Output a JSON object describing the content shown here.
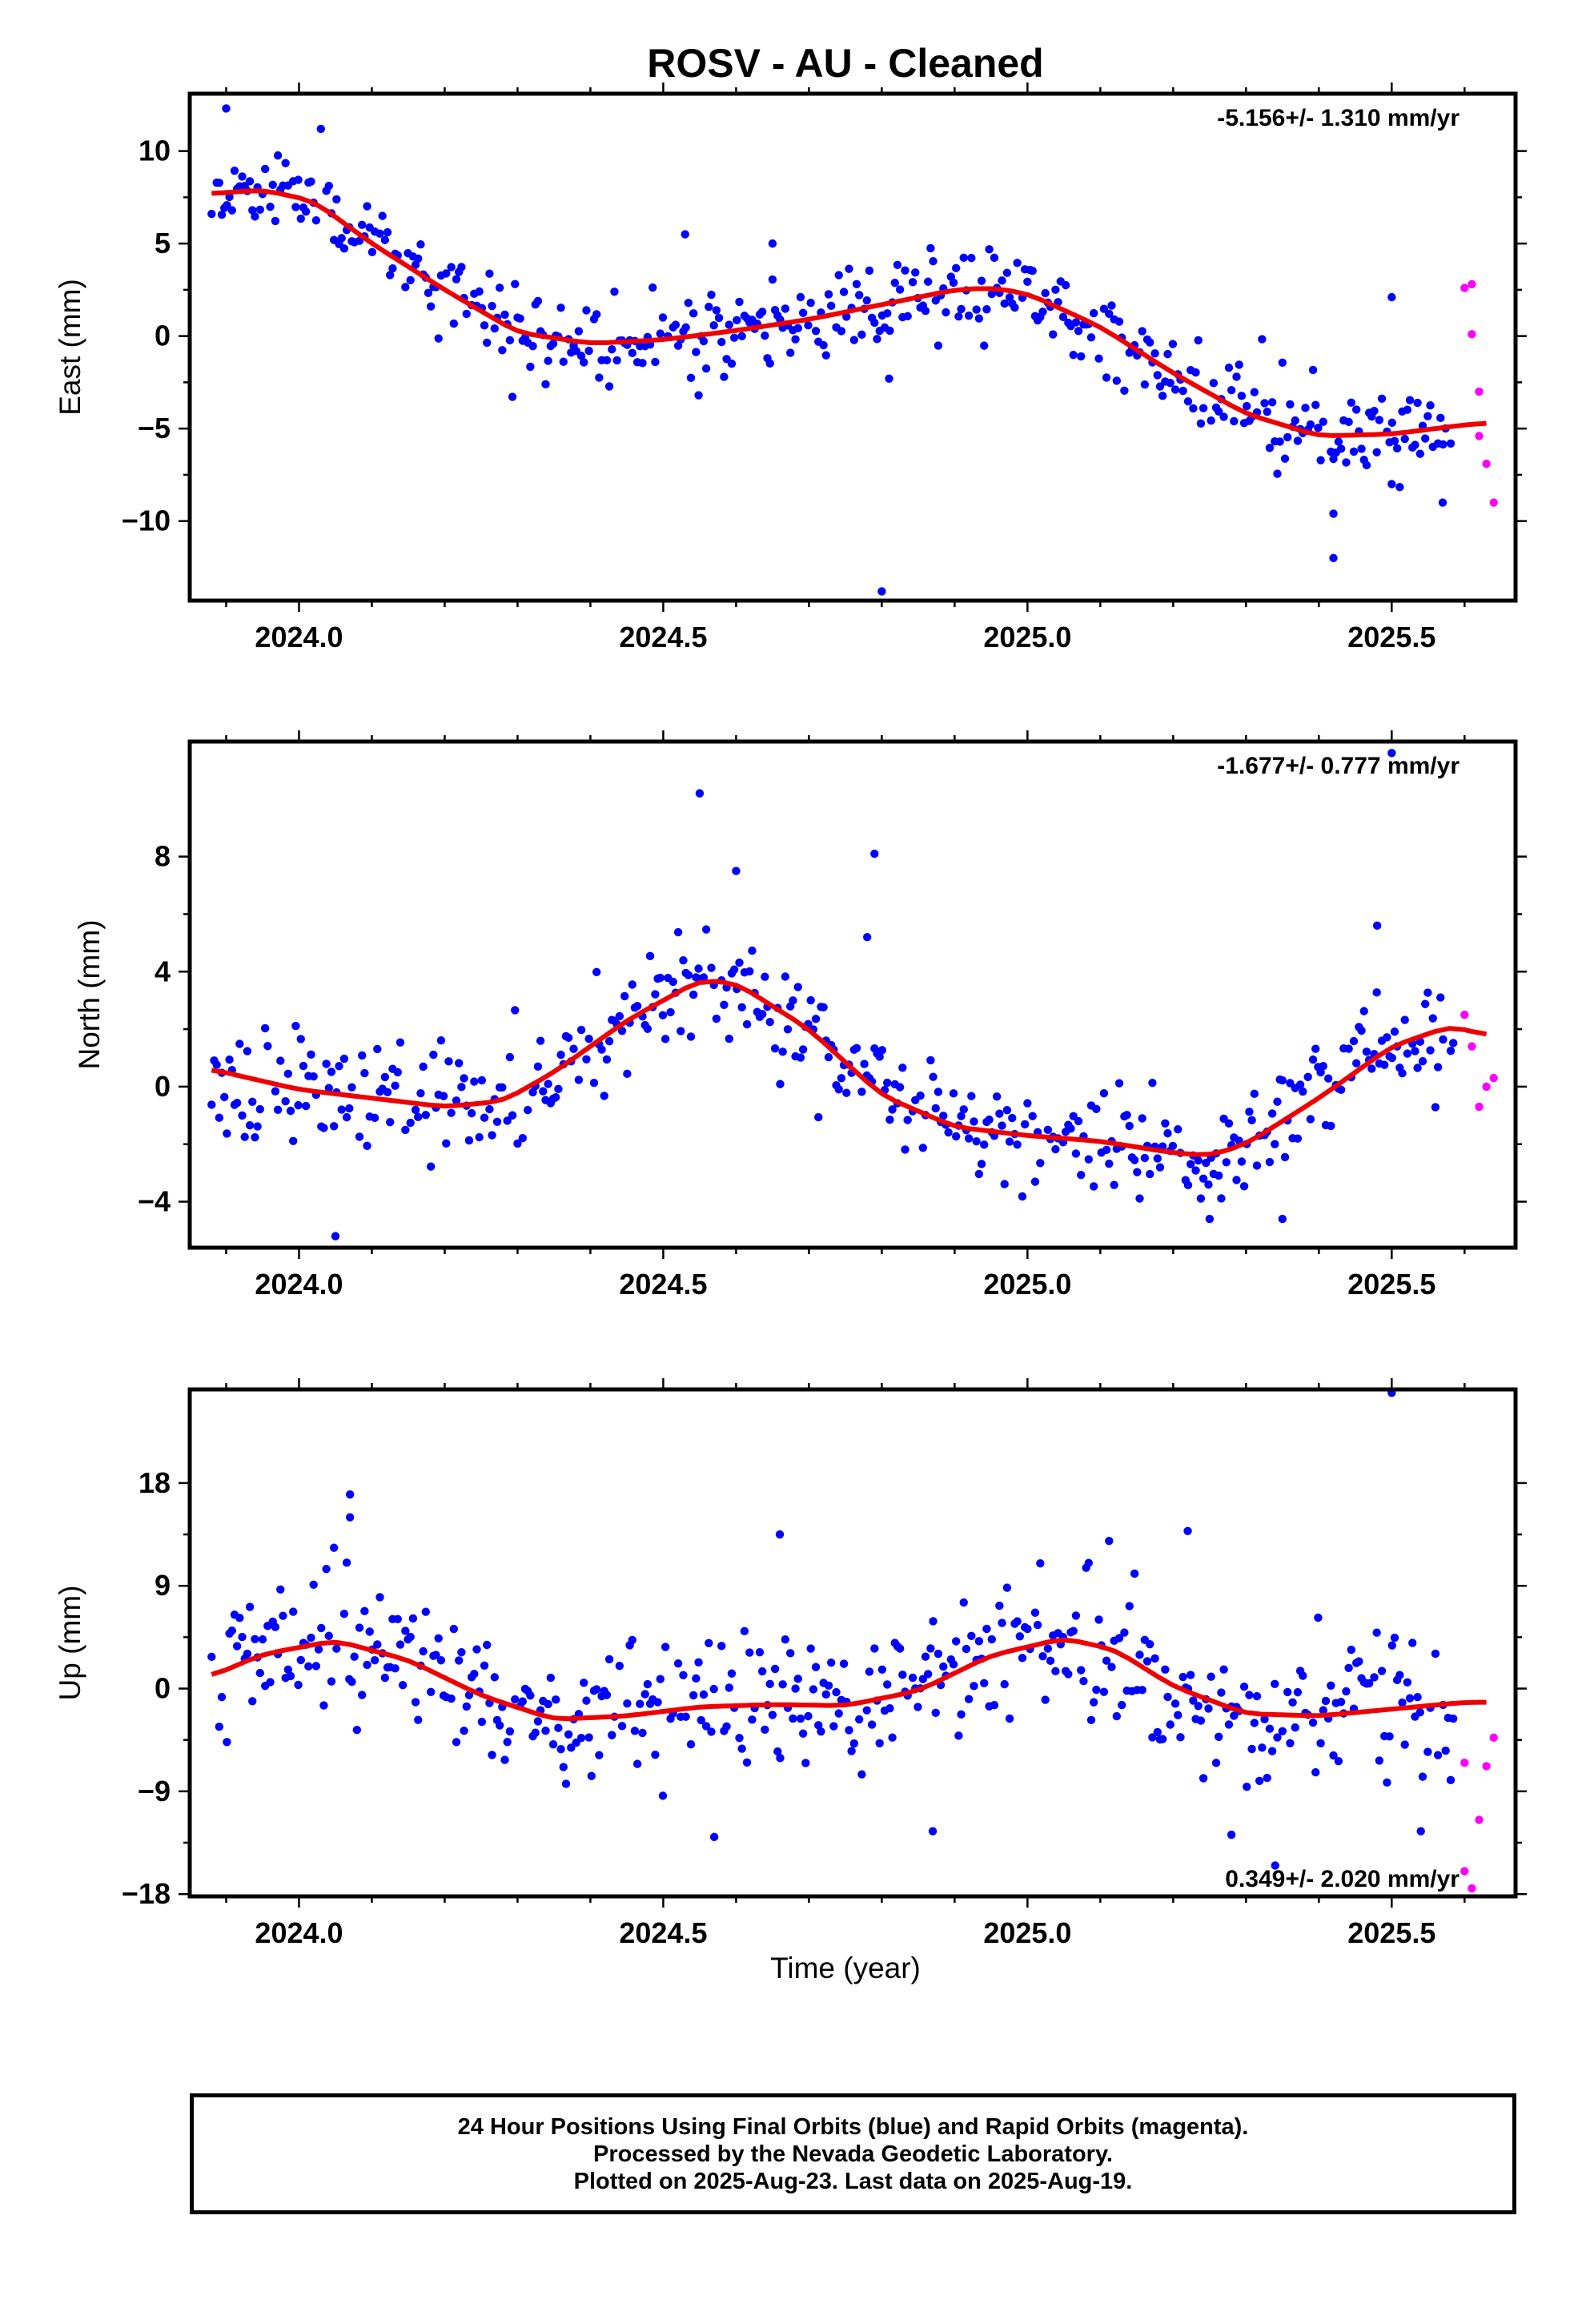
{
  "title": "ROSV  - AU - Cleaned",
  "xlabel": "Time (year)",
  "footer": {
    "line1": "24 Hour Positions Using Final Orbits (blue) and Rapid Orbits (magenta).",
    "line2": "Processed by the Nevada Geodetic Laboratory.",
    "line3": "Plotted on 2025-Aug-23. Last data on 2025-Aug-19."
  },
  "colors": {
    "final": "#0000ff",
    "rapid": "#ff00ff",
    "fit": "#ee0000",
    "axis": "#000000"
  },
  "chart_data": [
    {
      "type": "scatter",
      "ylabel": "East (mm)",
      "annotation": "-5.156+/- 1.310 mm/yr",
      "annotation_position": "top-right",
      "xlim": [
        2023.85,
        2025.67
      ],
      "ylim": [
        -14.3,
        13.1
      ],
      "xticks": [
        2024.0,
        2024.5,
        2025.0,
        2025.5
      ],
      "xtick_labels": [
        "2024.0",
        "2024.5",
        "2025.0",
        "2025.5"
      ],
      "yticks": [
        -10,
        -5,
        0,
        5,
        10
      ],
      "ytick_labels": [
        "−10",
        "−5",
        "0",
        "5",
        "10"
      ],
      "fit_line": {
        "name": "fit",
        "x": [
          2023.88,
          2023.95,
          2024.02,
          2024.1,
          2024.2,
          2024.3,
          2024.4,
          2024.5,
          2024.6,
          2024.7,
          2024.8,
          2024.9,
          2024.95,
          2025.0,
          2025.1,
          2025.2,
          2025.3,
          2025.4,
          2025.5,
          2025.6,
          2025.63
        ],
        "y": [
          7.7,
          7.9,
          7.3,
          5.0,
          2.5,
          0.2,
          -0.4,
          -0.2,
          0.3,
          0.9,
          1.7,
          2.5,
          2.6,
          2.3,
          0.5,
          -2.0,
          -4.2,
          -5.4,
          -5.3,
          -4.8,
          -4.7
        ]
      },
      "final_trend": {
        "x_start": 2023.88,
        "x_end": 2025.58,
        "y_start": 7.8,
        "y_end": -4.2,
        "wave": [
          2.6,
          2.8,
          2.0,
          1.3
        ]
      },
      "noise": 1.15,
      "seed": 11,
      "outliers": [
        {
          "x": 2023.9,
          "y": 12.3
        },
        {
          "x": 2024.03,
          "y": 11.2
        },
        {
          "x": 2024.53,
          "y": 5.5
        },
        {
          "x": 2024.65,
          "y": 5.0
        },
        {
          "x": 2024.8,
          "y": -13.8
        },
        {
          "x": 2024.81,
          "y": -2.3
        },
        {
          "x": 2025.42,
          "y": -12.0
        },
        {
          "x": 2025.42,
          "y": -9.6
        },
        {
          "x": 2025.5,
          "y": 2.1
        },
        {
          "x": 2025.5,
          "y": -8.0
        },
        {
          "x": 2025.57,
          "y": -9.0
        }
      ],
      "rapid": {
        "x": [
          2025.6,
          2025.61,
          2025.61,
          2025.62,
          2025.62,
          2025.63,
          2025.64
        ],
        "y": [
          2.6,
          2.8,
          0.1,
          -3.0,
          -5.4,
          -6.9,
          -9.0
        ]
      }
    },
    {
      "type": "scatter",
      "ylabel": "North (mm)",
      "annotation": "-1.677+/- 0.777 mm/yr",
      "annotation_position": "top-right",
      "xlim": [
        2023.85,
        2025.67
      ],
      "ylim": [
        -5.6,
        12.0
      ],
      "xticks": [
        2024.0,
        2024.5,
        2025.0,
        2025.5
      ],
      "xtick_labels": [
        "2024.0",
        "2024.5",
        "2025.0",
        "2025.5"
      ],
      "yticks": [
        -4,
        0,
        4,
        8
      ],
      "ytick_labels": [
        "−4",
        "0",
        "4",
        "8"
      ],
      "fit_line": {
        "name": "fit",
        "x": [
          2023.88,
          2024.0,
          2024.1,
          2024.2,
          2024.28,
          2024.35,
          2024.45,
          2024.55,
          2024.6,
          2024.7,
          2024.8,
          2024.9,
          2025.0,
          2025.1,
          2025.2,
          2025.25,
          2025.3,
          2025.4,
          2025.5,
          2025.58,
          2025.63
        ],
        "y": [
          0.6,
          -0.1,
          -0.4,
          -0.7,
          -0.5,
          0.5,
          2.3,
          3.7,
          3.6,
          2.0,
          -0.3,
          -1.4,
          -1.7,
          -1.9,
          -2.3,
          -2.4,
          -2.0,
          -0.4,
          1.4,
          2.1,
          1.8
        ]
      },
      "noise": 0.95,
      "seed": 23,
      "outliers": [
        {
          "x": 2024.05,
          "y": -5.2
        },
        {
          "x": 2024.55,
          "y": 10.2
        },
        {
          "x": 2024.6,
          "y": 7.5
        },
        {
          "x": 2024.79,
          "y": 8.1
        },
        {
          "x": 2024.78,
          "y": 5.2
        },
        {
          "x": 2025.48,
          "y": 5.6
        },
        {
          "x": 2025.5,
          "y": 11.6
        },
        {
          "x": 2025.25,
          "y": -4.6
        },
        {
          "x": 2025.35,
          "y": -4.6
        }
      ],
      "rapid": {
        "x": [
          2025.6,
          2025.61,
          2025.62,
          2025.63,
          2025.64
        ],
        "y": [
          2.5,
          1.4,
          -0.7,
          0.0,
          0.3
        ]
      }
    },
    {
      "type": "scatter",
      "ylabel": "Up (mm)",
      "annotation": "0.349+/- 2.020 mm/yr",
      "annotation_position": "bottom-right",
      "xlim": [
        2023.85,
        2025.67
      ],
      "ylim": [
        -18.2,
        26.2
      ],
      "xticks": [
        2024.0,
        2024.5,
        2025.0,
        2025.5
      ],
      "xtick_labels": [
        "2024.0",
        "2024.5",
        "2025.0",
        "2025.5"
      ],
      "yticks": [
        -18,
        -9,
        0,
        9,
        18
      ],
      "ytick_labels": [
        "−18",
        "−9",
        "0",
        "9",
        "18"
      ],
      "fit_line": {
        "name": "fit",
        "x": [
          2023.88,
          2023.95,
          2024.05,
          2024.15,
          2024.25,
          2024.35,
          2024.45,
          2024.55,
          2024.65,
          2024.75,
          2024.85,
          2024.95,
          2025.05,
          2025.12,
          2025.2,
          2025.3,
          2025.4,
          2025.5,
          2025.6,
          2025.63
        ],
        "y": [
          1.1,
          3.0,
          4.2,
          2.5,
          -0.6,
          -2.7,
          -2.4,
          -1.6,
          -1.4,
          -1.5,
          -0.2,
          2.9,
          4.4,
          3.4,
          0.2,
          -2.2,
          -2.4,
          -1.8,
          -1.2,
          -1.2
        ]
      },
      "noise": 3.1,
      "seed": 37,
      "outliers": [
        {
          "x": 2024.07,
          "y": 17.0
        },
        {
          "x": 2024.07,
          "y": 15.0
        },
        {
          "x": 2024.57,
          "y": -13.0
        },
        {
          "x": 2024.66,
          "y": 13.5
        },
        {
          "x": 2024.87,
          "y": -12.5
        },
        {
          "x": 2025.22,
          "y": 13.8
        },
        {
          "x": 2025.28,
          "y": -12.8
        },
        {
          "x": 2025.34,
          "y": -15.5
        },
        {
          "x": 2025.5,
          "y": 25.9
        },
        {
          "x": 2025.54,
          "y": -12.5
        }
      ],
      "rapid": {
        "x": [
          2025.6,
          2025.61,
          2025.62,
          2025.63,
          2025.64,
          2025.6
        ],
        "y": [
          -16.0,
          -17.5,
          -11.5,
          -6.8,
          -4.3,
          -6.5
        ]
      }
    }
  ]
}
